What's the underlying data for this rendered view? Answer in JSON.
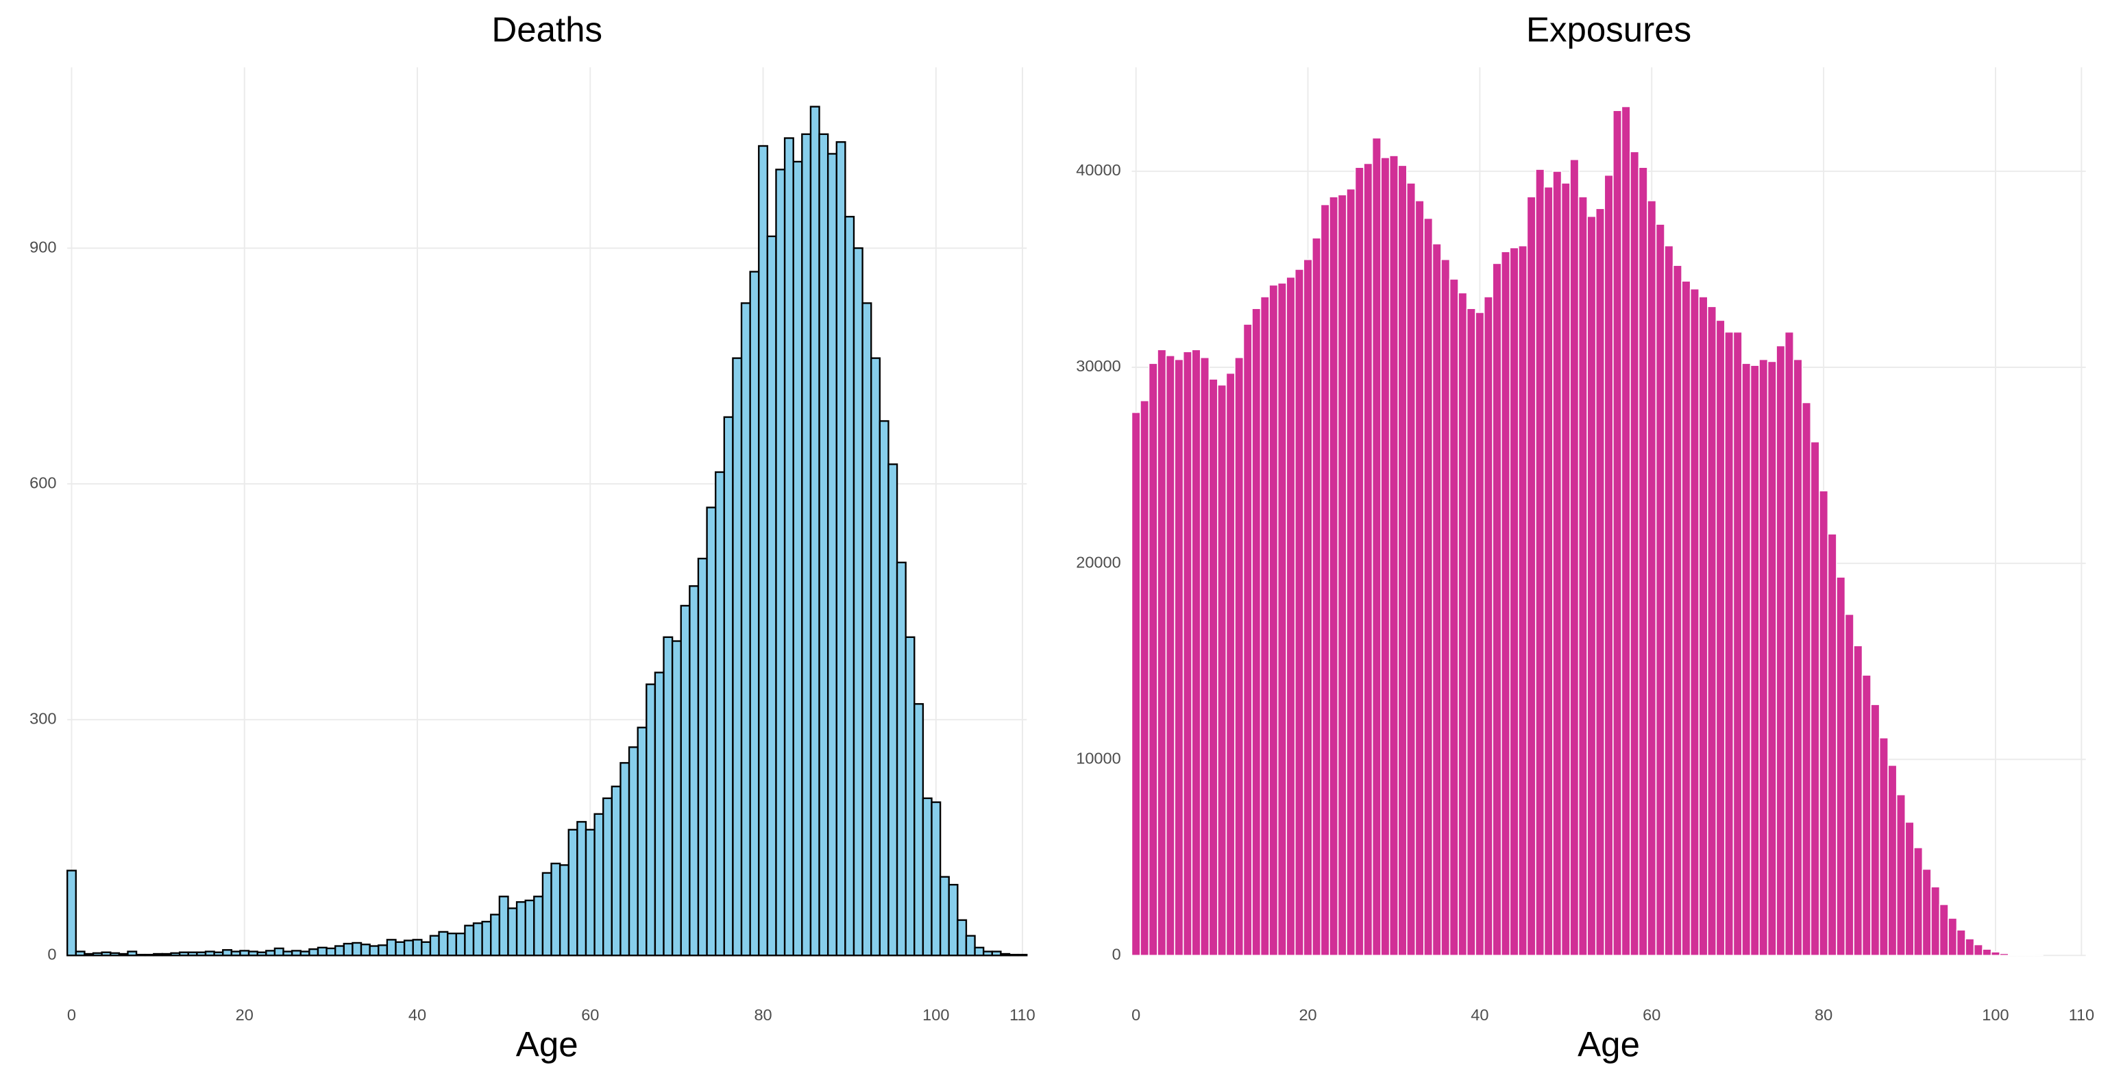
{
  "chart_data": [
    {
      "type": "bar",
      "title": "Deaths",
      "x_label": "Age",
      "x": [
        0,
        1,
        2,
        3,
        4,
        5,
        6,
        7,
        8,
        9,
        10,
        11,
        12,
        13,
        14,
        15,
        16,
        17,
        18,
        19,
        20,
        21,
        22,
        23,
        24,
        25,
        26,
        27,
        28,
        29,
        30,
        31,
        32,
        33,
        34,
        35,
        36,
        37,
        38,
        39,
        40,
        41,
        42,
        43,
        44,
        45,
        46,
        47,
        48,
        49,
        50,
        51,
        52,
        53,
        54,
        55,
        56,
        57,
        58,
        59,
        60,
        61,
        62,
        63,
        64,
        65,
        66,
        67,
        68,
        69,
        70,
        71,
        72,
        73,
        74,
        75,
        76,
        77,
        78,
        79,
        80,
        81,
        82,
        83,
        84,
        85,
        86,
        87,
        88,
        89,
        90,
        91,
        92,
        93,
        94,
        95,
        96,
        97,
        98,
        99,
        100,
        101,
        102,
        103,
        104,
        105,
        106,
        107,
        108,
        109,
        110
      ],
      "values": [
        108,
        5,
        2,
        3,
        4,
        3,
        2,
        5,
        1,
        1,
        2,
        2,
        3,
        4,
        4,
        4,
        5,
        4,
        7,
        5,
        6,
        5,
        4,
        6,
        9,
        5,
        6,
        5,
        8,
        10,
        9,
        12,
        15,
        16,
        14,
        12,
        13,
        20,
        17,
        19,
        20,
        17,
        25,
        30,
        28,
        28,
        38,
        41,
        43,
        52,
        75,
        60,
        68,
        70,
        75,
        105,
        117,
        115,
        160,
        170,
        160,
        180,
        200,
        215,
        245,
        265,
        290,
        345,
        360,
        405,
        400,
        445,
        470,
        505,
        570,
        615,
        685,
        760,
        830,
        870,
        1030,
        915,
        1000,
        1040,
        1010,
        1045,
        1080,
        1045,
        1020,
        1035,
        940,
        900,
        830,
        760,
        680,
        625,
        500,
        405,
        320,
        200,
        195,
        100,
        90,
        45,
        25,
        10,
        5,
        5,
        2,
        1,
        1
      ],
      "color": "#87ceeb",
      "edgecolor": "#000000",
      "xlim": [
        -0.5,
        110.5
      ],
      "xticks": [
        0,
        20,
        40,
        60,
        80,
        100,
        110
      ],
      "ylim": [
        0,
        1130
      ],
      "yticks": [
        0,
        300,
        600,
        900
      ],
      "grid": true
    },
    {
      "type": "bar",
      "title": "Exposures",
      "x_label": "Age",
      "x": [
        0,
        1,
        2,
        3,
        4,
        5,
        6,
        7,
        8,
        9,
        10,
        11,
        12,
        13,
        14,
        15,
        16,
        17,
        18,
        19,
        20,
        21,
        22,
        23,
        24,
        25,
        26,
        27,
        28,
        29,
        30,
        31,
        32,
        33,
        34,
        35,
        36,
        37,
        38,
        39,
        40,
        41,
        42,
        43,
        44,
        45,
        46,
        47,
        48,
        49,
        50,
        51,
        52,
        53,
        54,
        55,
        56,
        57,
        58,
        59,
        60,
        61,
        62,
        63,
        64,
        65,
        66,
        67,
        68,
        69,
        70,
        71,
        72,
        73,
        74,
        75,
        76,
        77,
        78,
        79,
        80,
        81,
        82,
        83,
        84,
        85,
        86,
        87,
        88,
        89,
        90,
        91,
        92,
        93,
        94,
        95,
        96,
        97,
        98,
        99,
        100,
        101,
        102,
        103,
        104,
        105
      ],
      "values": [
        27700,
        28300,
        30200,
        30900,
        30600,
        30400,
        30800,
        30900,
        30500,
        29400,
        29100,
        29700,
        30500,
        32200,
        33000,
        33600,
        34200,
        34300,
        34600,
        35000,
        35500,
        36600,
        38300,
        38700,
        38800,
        39100,
        40200,
        40400,
        41700,
        40700,
        40800,
        40300,
        39400,
        38500,
        37600,
        36300,
        35500,
        34500,
        33800,
        33000,
        32800,
        33600,
        35300,
        35900,
        36100,
        36200,
        38700,
        40100,
        39200,
        40000,
        39400,
        40600,
        38700,
        37700,
        38100,
        39800,
        43100,
        43300,
        41000,
        40200,
        38500,
        37300,
        36200,
        35200,
        34400,
        34000,
        33600,
        33100,
        32400,
        31800,
        31800,
        30200,
        30100,
        30400,
        30300,
        31100,
        31800,
        30400,
        28200,
        26200,
        23700,
        21500,
        19300,
        17400,
        15800,
        14300,
        12800,
        11100,
        9700,
        8200,
        6800,
        5500,
        4400,
        3500,
        2600,
        1900,
        1300,
        850,
        550,
        320,
        180,
        100,
        50,
        25,
        10,
        5
      ],
      "color": "#d12f96",
      "edgecolor": "#ffffff",
      "xlim": [
        -0.5,
        110.5
      ],
      "xticks": [
        0,
        20,
        40,
        60,
        80,
        100,
        110
      ],
      "ylim": [
        0,
        45300
      ],
      "yticks": [
        0,
        10000,
        20000,
        30000,
        40000
      ],
      "grid": true
    }
  ]
}
